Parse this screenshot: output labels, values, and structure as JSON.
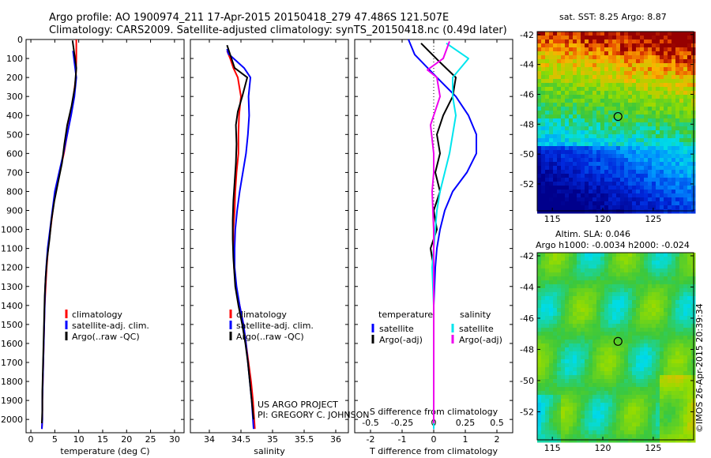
{
  "header": {
    "line1": "Argo profile: AO 1900974_211 17-Apr-2015 20150418_279 47.486S 121.507E",
    "line2": "Climatology: CARS2009. Satellite-adjusted climatology: synTS_20150418.nc (0.49d later)"
  },
  "colors": {
    "climatology": "#ff0000",
    "satellite": "#0000ff",
    "argo": "#000000",
    "salinity_satellite": "#00e5ee",
    "salinity_argo": "#ee00ee"
  },
  "chart_data": [
    {
      "type": "line",
      "id": "temperature",
      "xlabel": "temperature (deg C)",
      "ylabel": "",
      "xlim": [
        -1,
        32
      ],
      "ylim": [
        2070,
        0
      ],
      "xticks": [
        0,
        5,
        10,
        15,
        20,
        25,
        30
      ],
      "yticks": [
        0,
        100,
        200,
        300,
        400,
        500,
        600,
        700,
        800,
        900,
        1000,
        1100,
        1200,
        1300,
        1400,
        1500,
        1600,
        1700,
        1800,
        1900,
        2000
      ],
      "legend": [
        "climatology",
        "satellite-adj. clim.",
        "Argo(..raw -QC)"
      ],
      "series": [
        {
          "name": "climatology",
          "color": "#ff0000",
          "points": [
            [
              9.5,
              0
            ],
            [
              9.5,
              100
            ],
            [
              9.4,
              200
            ],
            [
              8.9,
              300
            ],
            [
              8.3,
              400
            ],
            [
              7.6,
              500
            ],
            [
              6.9,
              600
            ],
            [
              6.0,
              700
            ],
            [
              5.1,
              800
            ],
            [
              4.6,
              900
            ],
            [
              4.1,
              1000
            ],
            [
              3.6,
              1100
            ],
            [
              3.3,
              1200
            ],
            [
              3.1,
              1300
            ],
            [
              2.9,
              1400
            ],
            [
              2.8,
              1500
            ],
            [
              2.7,
              1600
            ],
            [
              2.6,
              1700
            ],
            [
              2.5,
              1800
            ],
            [
              2.4,
              1900
            ],
            [
              2.4,
              2000
            ],
            [
              2.3,
              2050
            ]
          ]
        },
        {
          "name": "satellite-adj. clim.",
          "color": "#0000ff",
          "points": [
            [
              8.8,
              60
            ],
            [
              9.0,
              100
            ],
            [
              9.5,
              200
            ],
            [
              9.1,
              300
            ],
            [
              8.4,
              400
            ],
            [
              7.6,
              500
            ],
            [
              6.8,
              600
            ],
            [
              5.9,
              700
            ],
            [
              5.0,
              800
            ],
            [
              4.5,
              900
            ],
            [
              4.0,
              1000
            ],
            [
              3.5,
              1100
            ],
            [
              3.2,
              1200
            ],
            [
              3.0,
              1300
            ],
            [
              2.9,
              1400
            ],
            [
              2.8,
              1500
            ],
            [
              2.7,
              1600
            ],
            [
              2.6,
              1700
            ],
            [
              2.5,
              1800
            ],
            [
              2.4,
              1900
            ],
            [
              2.4,
              2000
            ],
            [
              2.3,
              2050
            ]
          ]
        },
        {
          "name": "Argo(..raw -QC)",
          "color": "#000000",
          "points": [
            [
              8.7,
              5
            ],
            [
              9.5,
              150
            ],
            [
              9.2,
              250
            ],
            [
              8.5,
              350
            ],
            [
              7.6,
              450
            ],
            [
              7.0,
              550
            ],
            [
              6.5,
              650
            ],
            [
              5.7,
              750
            ],
            [
              4.9,
              850
            ],
            [
              4.3,
              950
            ],
            [
              3.9,
              1050
            ],
            [
              3.4,
              1150
            ],
            [
              3.1,
              1250
            ],
            [
              2.9,
              1350
            ],
            [
              2.8,
              1450
            ],
            [
              2.7,
              1550
            ],
            [
              2.6,
              1650
            ],
            [
              2.5,
              1750
            ],
            [
              2.4,
              1850
            ],
            [
              2.4,
              1950
            ],
            [
              2.3,
              2020
            ]
          ]
        }
      ]
    },
    {
      "type": "line",
      "id": "salinity",
      "xlabel": "salinity",
      "xlim": [
        33.7,
        36.2
      ],
      "ylim": [
        2070,
        0
      ],
      "xticks": [
        34,
        34.5,
        35,
        35.5,
        36
      ],
      "legend": [
        "climatology",
        "satellite-adj. clim.",
        "Argo(..raw -QC)"
      ],
      "series": [
        {
          "name": "climatology",
          "color": "#ff0000",
          "points": [
            [
              34.28,
              60
            ],
            [
              34.33,
              100
            ],
            [
              34.38,
              150
            ],
            [
              34.45,
              200
            ],
            [
              34.5,
              300
            ],
            [
              34.47,
              400
            ],
            [
              34.46,
              500
            ],
            [
              34.46,
              600
            ],
            [
              34.43,
              700
            ],
            [
              34.41,
              800
            ],
            [
              34.4,
              900
            ],
            [
              34.38,
              1000
            ],
            [
              34.38,
              1100
            ],
            [
              34.39,
              1200
            ],
            [
              34.42,
              1300
            ],
            [
              34.48,
              1400
            ],
            [
              34.54,
              1500
            ],
            [
              34.58,
              1600
            ],
            [
              34.62,
              1700
            ],
            [
              34.66,
              1800
            ],
            [
              34.69,
              1900
            ],
            [
              34.71,
              2000
            ],
            [
              34.72,
              2050
            ]
          ]
        },
        {
          "name": "satellite-adj. clim.",
          "color": "#0000ff",
          "points": [
            [
              34.28,
              50
            ],
            [
              34.3,
              75
            ],
            [
              34.55,
              150
            ],
            [
              34.65,
              200
            ],
            [
              34.62,
              300
            ],
            [
              34.63,
              400
            ],
            [
              34.61,
              500
            ],
            [
              34.58,
              600
            ],
            [
              34.53,
              700
            ],
            [
              34.48,
              800
            ],
            [
              34.44,
              900
            ],
            [
              34.41,
              1000
            ],
            [
              34.4,
              1100
            ],
            [
              34.4,
              1200
            ],
            [
              34.43,
              1300
            ],
            [
              34.48,
              1400
            ],
            [
              34.54,
              1500
            ],
            [
              34.58,
              1600
            ],
            [
              34.61,
              1700
            ],
            [
              34.64,
              1800
            ],
            [
              34.67,
              1900
            ],
            [
              34.69,
              2000
            ],
            [
              34.7,
              2050
            ]
          ]
        },
        {
          "name": "Argo(..raw -QC)",
          "color": "#000000",
          "points": [
            [
              34.28,
              30
            ],
            [
              34.4,
              150
            ],
            [
              34.6,
              200
            ],
            [
              34.52,
              300
            ],
            [
              34.45,
              380
            ],
            [
              34.42,
              450
            ],
            [
              34.43,
              550
            ],
            [
              34.42,
              650
            ],
            [
              34.4,
              750
            ],
            [
              34.38,
              850
            ],
            [
              34.37,
              950
            ],
            [
              34.37,
              1050
            ],
            [
              34.38,
              1150
            ],
            [
              34.41,
              1300
            ],
            [
              34.46,
              1400
            ],
            [
              34.52,
              1500
            ],
            [
              34.57,
              1600
            ],
            [
              34.61,
              1700
            ],
            [
              34.64,
              1800
            ],
            [
              34.67,
              1900
            ],
            [
              34.7,
              2000
            ]
          ]
        }
      ]
    },
    {
      "type": "line",
      "id": "difference",
      "xlabel": "T difference from climatology",
      "xlabel2": "S difference from climatology",
      "xlim": [
        -2.5,
        2.5
      ],
      "ylim": [
        2070,
        0
      ],
      "xticks": [
        -2,
        -1,
        0,
        1,
        2
      ],
      "xticks2": [
        "-0.5",
        "-0.25",
        "0",
        "0.25",
        "0.5"
      ],
      "legend_title_t": "temperature",
      "legend_title_s": "salinity",
      "legend": [
        "satellite",
        "Argo(-adj)",
        "satellite",
        "Argo(-adj)"
      ],
      "series": [
        {
          "name": "satellite",
          "color": "#0000ff",
          "points": [
            [
              -0.8,
              0
            ],
            [
              -0.6,
              80
            ],
            [
              0.1,
              200
            ],
            [
              0.7,
              300
            ],
            [
              1.1,
              400
            ],
            [
              1.35,
              500
            ],
            [
              1.35,
              600
            ],
            [
              1.05,
              700
            ],
            [
              0.6,
              800
            ],
            [
              0.35,
              900
            ],
            [
              0.2,
              1000
            ],
            [
              0.1,
              1100
            ],
            [
              0.05,
              1200
            ],
            [
              0.0,
              1400
            ],
            [
              0.0,
              1600
            ],
            [
              0.0,
              1800
            ],
            [
              0.0,
              2050
            ]
          ]
        },
        {
          "name": "Argo(-adj)",
          "color": "#000000",
          "points": [
            [
              -0.4,
              20
            ],
            [
              0.2,
              120
            ],
            [
              0.7,
              200
            ],
            [
              0.6,
              300
            ],
            [
              0.3,
              400
            ],
            [
              0.1,
              500
            ],
            [
              0.2,
              600
            ],
            [
              0.05,
              700
            ],
            [
              0.2,
              800
            ],
            [
              0.0,
              900
            ],
            [
              0.1,
              1000
            ],
            [
              -0.1,
              1100
            ],
            [
              0.0,
              1200
            ],
            [
              0.0,
              1400
            ],
            [
              0.0,
              1600
            ],
            [
              0.0,
              1800
            ],
            [
              0.0,
              2020
            ]
          ]
        },
        {
          "name": "satellite",
          "color": "#00e5ee",
          "points": [
            [
              0.4,
              20
            ],
            [
              1.1,
              100
            ],
            [
              0.6,
              200
            ],
            [
              0.6,
              300
            ],
            [
              0.7,
              400
            ],
            [
              0.6,
              500
            ],
            [
              0.5,
              600
            ],
            [
              0.35,
              700
            ],
            [
              0.2,
              800
            ],
            [
              0.1,
              900
            ],
            [
              0.05,
              1000
            ],
            [
              0.0,
              1100
            ],
            [
              -0.05,
              1200
            ],
            [
              0.0,
              1400
            ],
            [
              0.0,
              1600
            ],
            [
              0.0,
              1800
            ],
            [
              0.0,
              2050
            ]
          ]
        },
        {
          "name": "Argo(-adj)",
          "color": "#ee00ee",
          "points": [
            [
              0.5,
              10
            ],
            [
              0.3,
              100
            ],
            [
              -0.2,
              160
            ],
            [
              0.1,
              200
            ],
            [
              0.2,
              300
            ],
            [
              -0.1,
              450
            ],
            [
              0.0,
              600
            ],
            [
              0.0,
              700
            ],
            [
              -0.05,
              800
            ],
            [
              0.0,
              1000
            ],
            [
              0.0,
              1200
            ],
            [
              0.0,
              1400
            ],
            [
              0.0,
              1600
            ],
            [
              0.0,
              1800
            ],
            [
              0.0,
              2020
            ]
          ]
        }
      ]
    }
  ],
  "credits": {
    "line1": "US ARGO PROJECT",
    "line2": "PI: GREGORY C. JOHNSON"
  },
  "maps": {
    "sst_title": "sat. SST: 8.25 Argo: 8.87",
    "sla_title1": "Altim. SLA: 0.046",
    "sla_title2": "Argo h1000: -0.0034 h2000: -0.024",
    "lat_ticks": [
      "-42",
      "-44",
      "-46",
      "-48",
      "-50",
      "-52"
    ],
    "lon_ticks": [
      "115",
      "120",
      "125"
    ],
    "float_lon": 121.507,
    "float_lat": -47.486,
    "lon_range": [
      113.5,
      129.0
    ],
    "lat_range": [
      -53.8,
      -41.8
    ],
    "stamp": "©IMOS 26-Apr-2015 20:39:34"
  }
}
